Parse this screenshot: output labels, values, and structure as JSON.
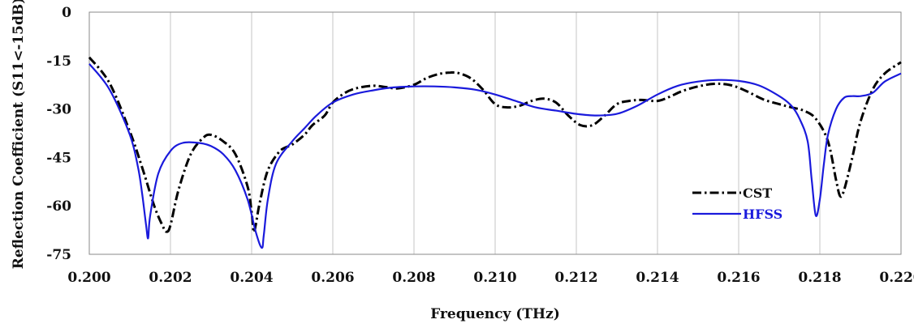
{
  "chart_data": {
    "type": "line",
    "title": "",
    "xlabel": "Frequency (THz)",
    "ylabel": "Reflection Coefficient (S11<-15dB)",
    "xlim": [
      0.2,
      0.22
    ],
    "ylim": [
      -75,
      0
    ],
    "x_ticks": [
      0.2,
      0.202,
      0.204,
      0.206,
      0.208,
      0.21,
      0.212,
      0.214,
      0.216,
      0.218,
      0.22
    ],
    "x_tick_labels": [
      "0.200",
      "0.202",
      "0.204",
      "0.206",
      "0.208",
      "0.210",
      "0.212",
      "0.214",
      "0.216",
      "0.218",
      "0.220"
    ],
    "y_ticks": [
      0,
      -15,
      -30,
      -45,
      -60,
      -75
    ],
    "y_tick_labels": [
      "0",
      "-15",
      "-30",
      "-45",
      "-60",
      "-75"
    ],
    "grid": "vertical",
    "legend_position": "bottom-right",
    "series": [
      {
        "name": "CST",
        "color": "#000000",
        "style": "dash-dot",
        "x": [
          0.2,
          0.2005,
          0.201,
          0.2013,
          0.2016,
          0.2018,
          0.2019,
          0.202,
          0.2022,
          0.2025,
          0.2028,
          0.203,
          0.2033,
          0.2036,
          0.2039,
          0.204,
          0.20405,
          0.2041,
          0.2042,
          0.2044,
          0.2047,
          0.205,
          0.2053,
          0.2055,
          0.2058,
          0.206,
          0.2063,
          0.2066,
          0.207,
          0.2073,
          0.2076,
          0.208,
          0.2083,
          0.2086,
          0.2089,
          0.2091,
          0.2094,
          0.2097,
          0.21,
          0.2103,
          0.2106,
          0.2109,
          0.2112,
          0.2115,
          0.2118,
          0.2121,
          0.2124,
          0.2127,
          0.213,
          0.2133,
          0.2136,
          0.214,
          0.2143,
          0.2146,
          0.215,
          0.2154,
          0.2158,
          0.2162,
          0.2166,
          0.217,
          0.2173,
          0.2176,
          0.2179,
          0.2182,
          0.2184,
          0.2185,
          0.2186,
          0.2188,
          0.219,
          0.2193,
          0.2196,
          0.22
        ],
        "y": [
          -14,
          -22,
          -37,
          -48,
          -60,
          -66,
          -68,
          -66,
          -55,
          -44,
          -39,
          -38,
          -40,
          -44,
          -54,
          -62,
          -68,
          -66,
          -59,
          -49,
          -43,
          -41,
          -38,
          -35,
          -32,
          -28,
          -25,
          -23.5,
          -22.8,
          -23.2,
          -23.6,
          -22.5,
          -20.5,
          -19.2,
          -18.7,
          -18.9,
          -20.5,
          -24,
          -28.5,
          -29.5,
          -29,
          -27.5,
          -26.8,
          -28,
          -32,
          -35,
          -35,
          -32,
          -28.5,
          -27.5,
          -27.2,
          -27.5,
          -26.2,
          -24.5,
          -23,
          -22.2,
          -22.6,
          -24.5,
          -27,
          -28.5,
          -29.5,
          -30.5,
          -33,
          -40,
          -52,
          -57,
          -55,
          -45,
          -34,
          -24,
          -19,
          -15.5
        ]
      },
      {
        "name": "HFSS",
        "color": "#1a1adc",
        "style": "solid",
        "x": [
          0.2,
          0.2005,
          0.201,
          0.2012,
          0.2013,
          0.2014,
          0.20145,
          0.2015,
          0.2017,
          0.202,
          0.2023,
          0.2027,
          0.203,
          0.2033,
          0.2036,
          0.2039,
          0.2041,
          0.20425,
          0.2043,
          0.2044,
          0.2046,
          0.205,
          0.2053,
          0.2056,
          0.206,
          0.2065,
          0.207,
          0.2075,
          0.208,
          0.2085,
          0.209,
          0.2095,
          0.21,
          0.2105,
          0.211,
          0.2115,
          0.212,
          0.2125,
          0.213,
          0.2135,
          0.214,
          0.2145,
          0.215,
          0.2155,
          0.216,
          0.2165,
          0.217,
          0.2173,
          0.2175,
          0.2177,
          0.2178,
          0.2179,
          0.218,
          0.2181,
          0.2182,
          0.2184,
          0.2186,
          0.2188,
          0.219,
          0.2193,
          0.2196,
          0.22
        ],
        "y": [
          -16,
          -24,
          -38,
          -48,
          -56,
          -66,
          -70,
          -63,
          -50,
          -43,
          -40.5,
          -40.5,
          -41.5,
          -44,
          -49,
          -58,
          -68,
          -73,
          -69,
          -58,
          -47,
          -40,
          -36,
          -32,
          -28,
          -25.5,
          -24.2,
          -23.3,
          -23,
          -23,
          -23.3,
          -24,
          -25.5,
          -27.5,
          -29.5,
          -30.5,
          -31.5,
          -32,
          -31.5,
          -29,
          -25.5,
          -22.8,
          -21.5,
          -21,
          -21.3,
          -22.7,
          -26,
          -29,
          -33,
          -40,
          -52,
          -63,
          -58,
          -47,
          -38,
          -30,
          -26.5,
          -26,
          -26,
          -25,
          -21.5,
          -19
        ]
      }
    ]
  }
}
